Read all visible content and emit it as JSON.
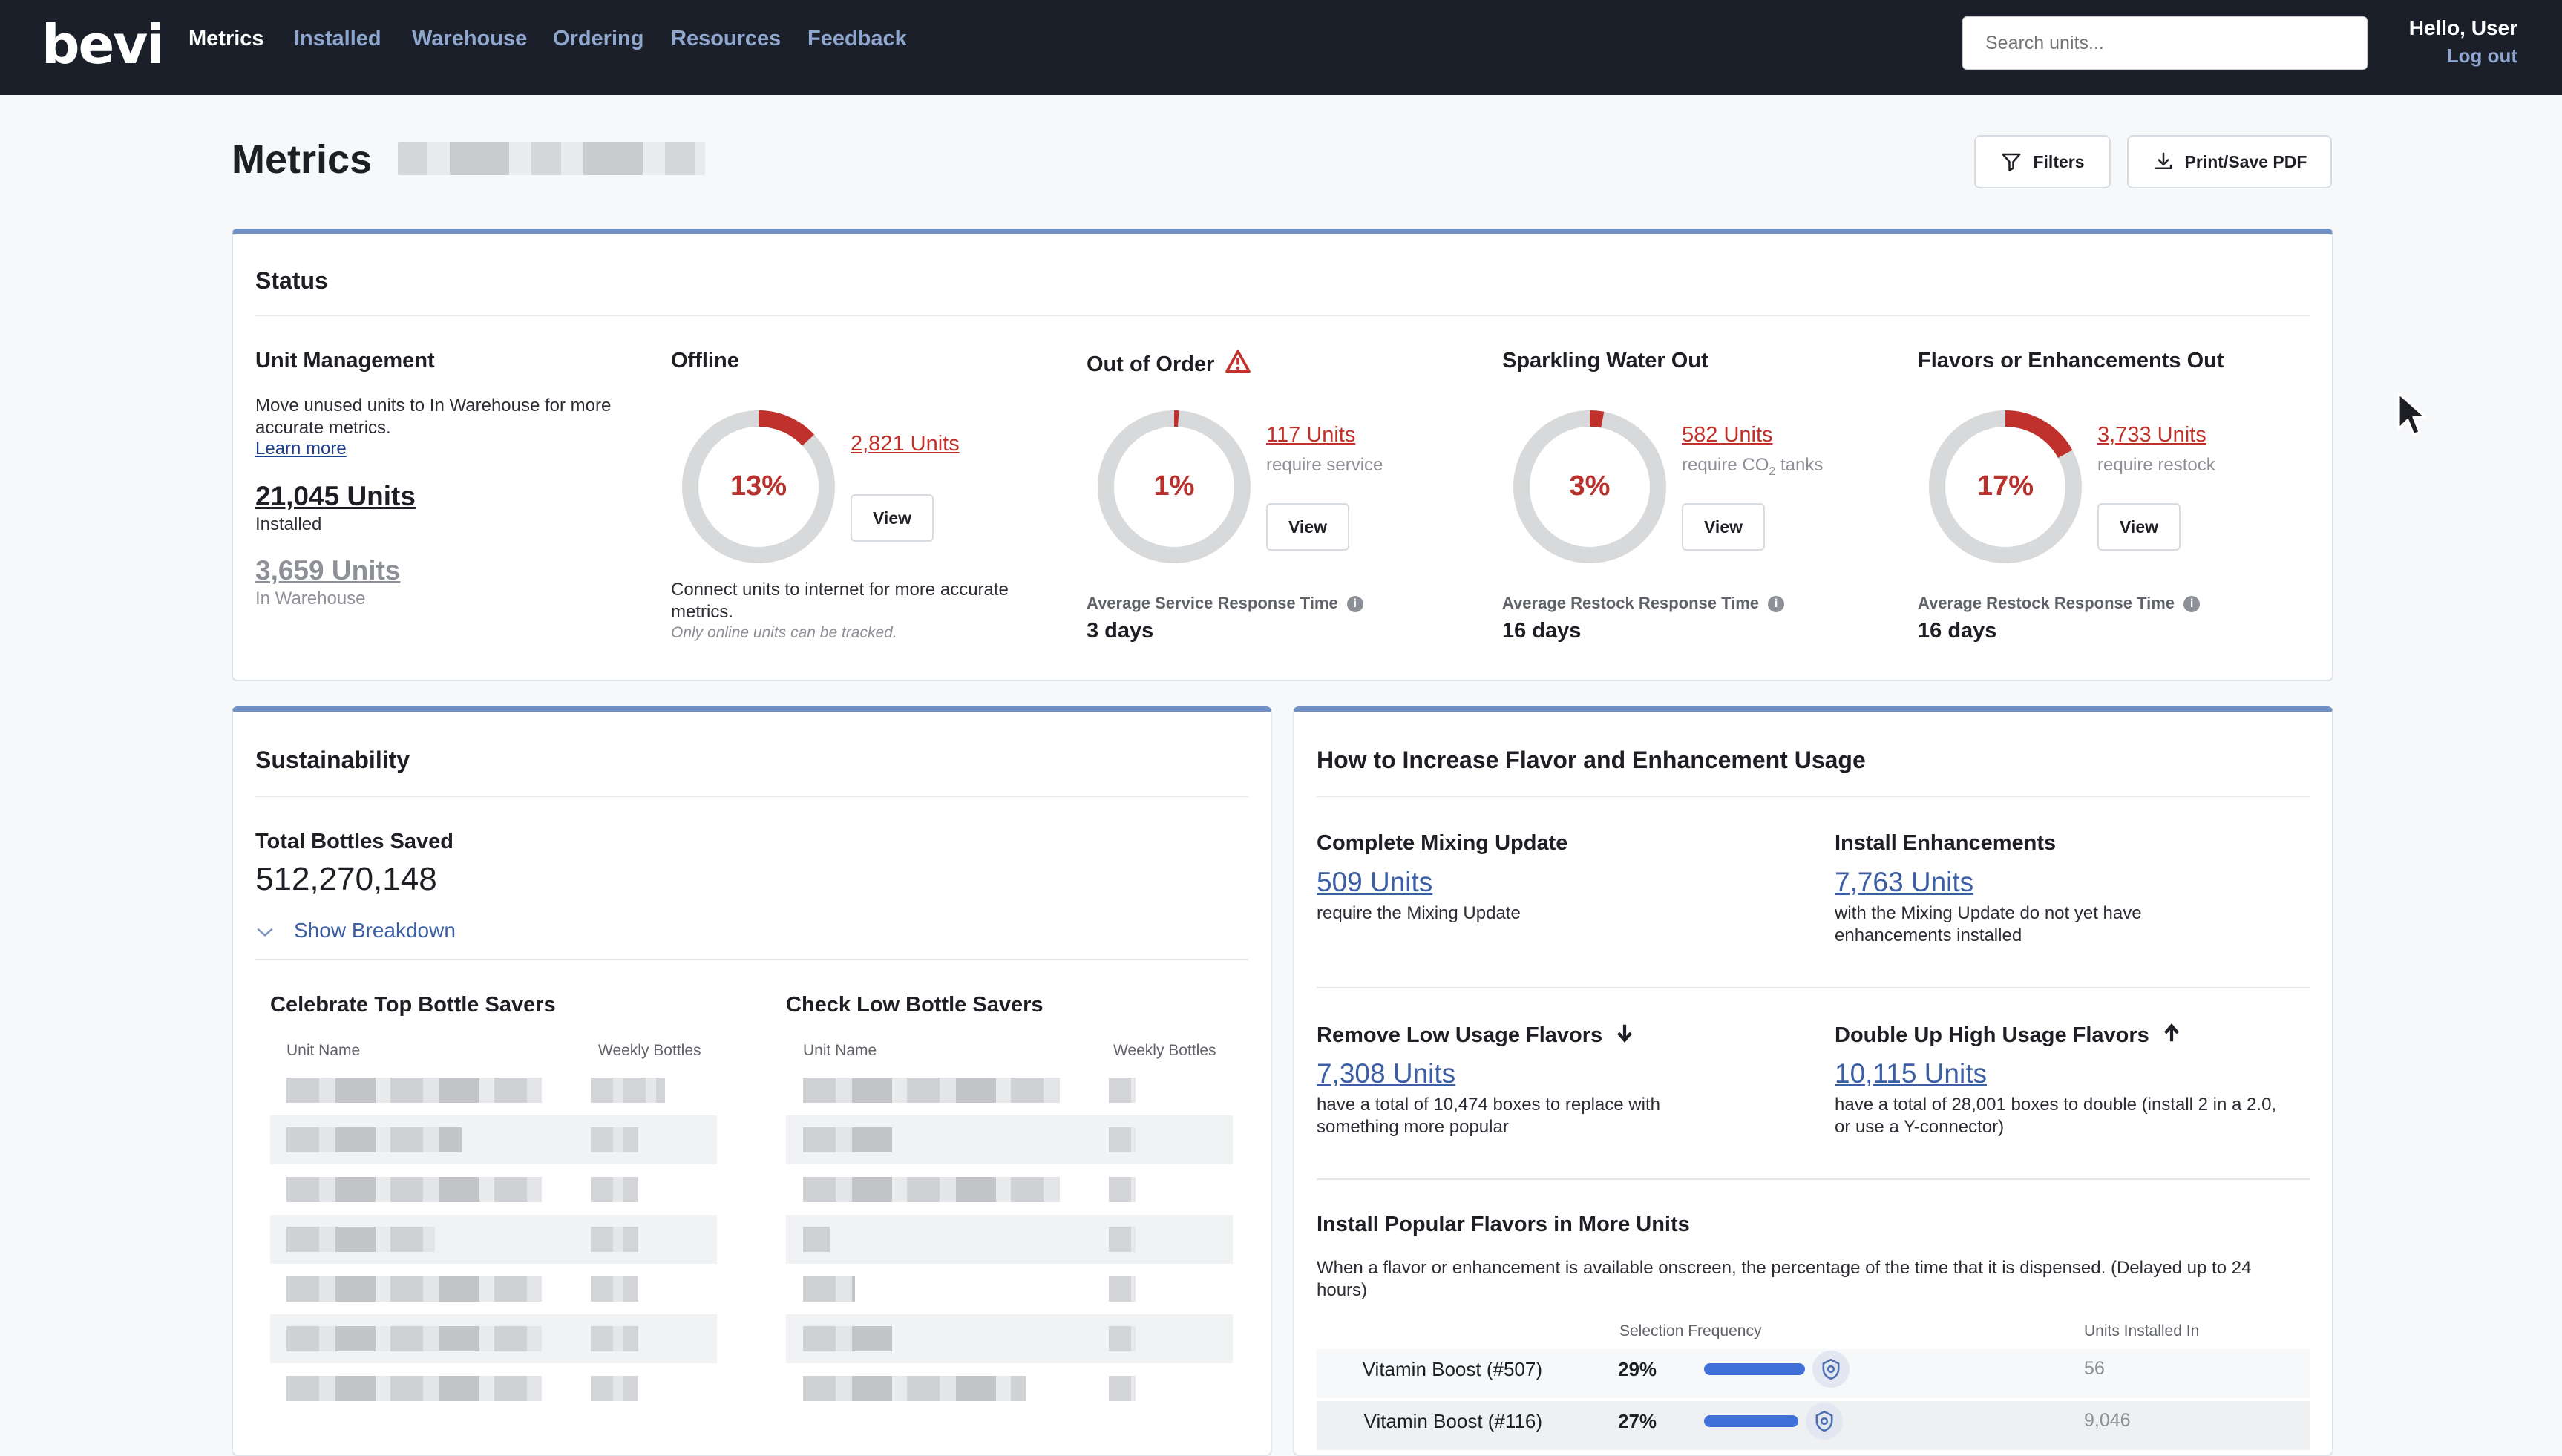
{
  "nav": {
    "logo": "bevi",
    "links": [
      "Metrics",
      "Installed",
      "Warehouse",
      "Ordering",
      "Resources",
      "Feedback"
    ],
    "search_placeholder": "Search units...",
    "greeting": "Hello, User",
    "logout": "Log out"
  },
  "header": {
    "title": "Metrics",
    "filters_label": "Filters",
    "print_label": "Print/Save PDF"
  },
  "status": {
    "title": "Status",
    "unit_management": {
      "title": "Unit Management",
      "desc": "Move unused units to In Warehouse for more accurate metrics.",
      "learn_more": "Learn more",
      "installed_count": "21,045 Units",
      "installed_label": "Installed",
      "warehouse_count": "3,659 Units",
      "warehouse_label": "In Warehouse"
    },
    "offline": {
      "title": "Offline",
      "percent": "13%",
      "percent_value": 13,
      "units": "2,821 Units",
      "view": "View",
      "note": "Connect units to internet for more accurate metrics.",
      "note_italic": "Only online units can be tracked."
    },
    "out_of_order": {
      "title": "Out of Order",
      "percent": "1%",
      "percent_value": 1,
      "units": "117 Units",
      "sub": "require service",
      "view": "View",
      "resp_label": "Average Service Response Time",
      "resp_value": "3 days"
    },
    "sparkling": {
      "title": "Sparkling Water Out",
      "percent": "3%",
      "percent_value": 3,
      "units": "582 Units",
      "sub_pre": "require CO",
      "sub_sub": "2",
      "sub_post": " tanks",
      "view": "View",
      "resp_label": "Average Restock Response Time",
      "resp_value": "16 days"
    },
    "flavors": {
      "title": "Flavors or Enhancements Out",
      "percent": "17%",
      "percent_value": 17,
      "units": "3,733 Units",
      "sub": "require restock",
      "view": "View",
      "resp_label": "Average Restock Response Time",
      "resp_value": "16 days"
    }
  },
  "sustainability": {
    "title": "Sustainability",
    "total_label": "Total Bottles Saved",
    "total_value": "512,270,148",
    "breakdown": "Show Breakdown",
    "top_title": "Celebrate Top Bottle Savers",
    "low_title": "Check Low Bottle Savers",
    "col_name": "Unit Name",
    "col_weekly": "Weekly Bottles"
  },
  "increase": {
    "title": "How to Increase Flavor and Enhancement Usage",
    "mixing": {
      "title": "Complete Mixing Update",
      "units": "509 Units",
      "desc": "require the Mixing Update"
    },
    "enhance": {
      "title": "Install Enhancements",
      "units": "7,763 Units",
      "desc": "with the Mixing Update do not yet have enhancements installed"
    },
    "remove": {
      "title": "Remove Low Usage Flavors",
      "units": "7,308 Units",
      "desc": "have a total of 10,474 boxes to replace with something more popular"
    },
    "double": {
      "title": "Double Up High Usage Flavors",
      "units": "10,115 Units",
      "desc": "have a total of 28,001 boxes to double (install 2 in a 2.0, or use a Y-connector)"
    },
    "popular": {
      "title": "Install Popular Flavors in More Units",
      "desc": "When a flavor or enhancement is available onscreen, the percentage of the time that it is dispensed. (Delayed up to 24 hours)",
      "col_freq": "Selection Frequency",
      "col_units": "Units Installed In",
      "rows": [
        {
          "name": "Vitamin Boost (#507)",
          "pct": "29%",
          "pct_value": 29,
          "units": "56"
        },
        {
          "name": "Vitamin Boost (#116)",
          "pct": "27%",
          "pct_value": 27,
          "units": "9,046"
        }
      ]
    }
  },
  "colors": {
    "nav_bg": "#1b1f2a",
    "accent": "#6f8fc5",
    "alert": "#c0312c",
    "bar": "#3f6fd8"
  }
}
